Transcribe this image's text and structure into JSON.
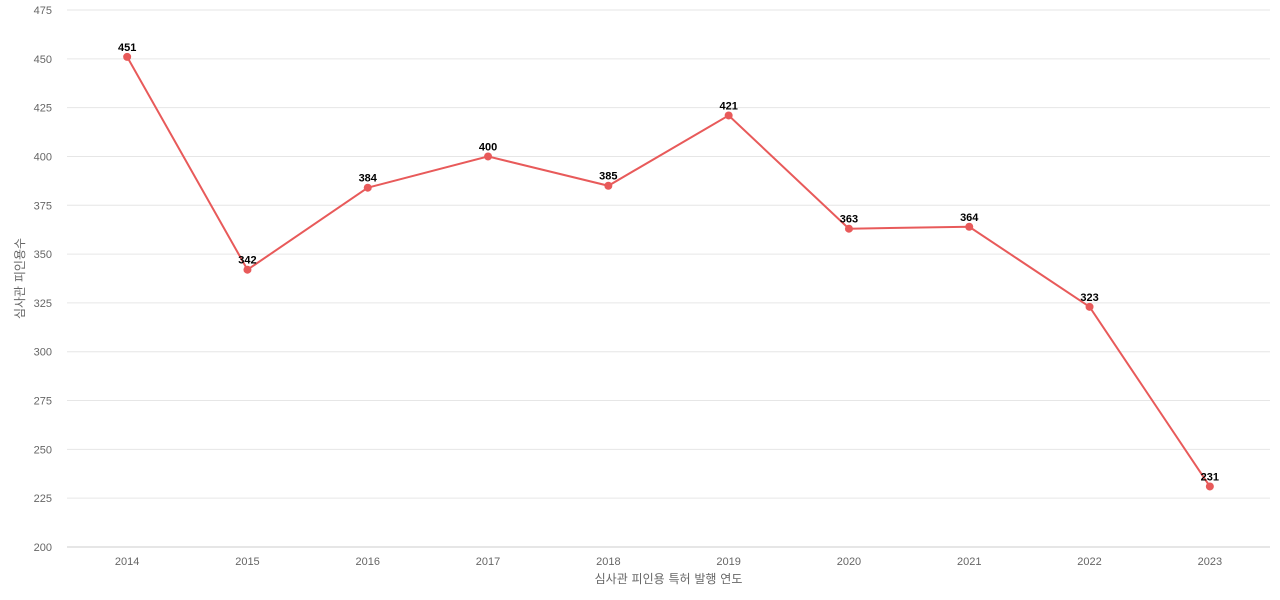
{
  "chart_data": {
    "type": "line",
    "title": "",
    "xlabel": "심사관 피인용 특허 발행 연도",
    "ylabel": "심사관 피인용수",
    "categories": [
      "2014",
      "2015",
      "2016",
      "2017",
      "2018",
      "2019",
      "2020",
      "2021",
      "2022",
      "2023"
    ],
    "series": [
      {
        "values": [
          451,
          342,
          384,
          400,
          385,
          421,
          363,
          364,
          323,
          231
        ]
      }
    ],
    "ylim": [
      200,
      475
    ],
    "yticks": [
      200,
      225,
      250,
      275,
      300,
      325,
      350,
      375,
      400,
      425,
      450,
      475
    ],
    "grid": true,
    "legend": "none",
    "data_labels": true,
    "colors": {
      "line": "#e85a5a",
      "grid": "#e6e6e6",
      "axis": "#cccccc",
      "tick_text": "#666666",
      "label_text": "#000000"
    }
  }
}
